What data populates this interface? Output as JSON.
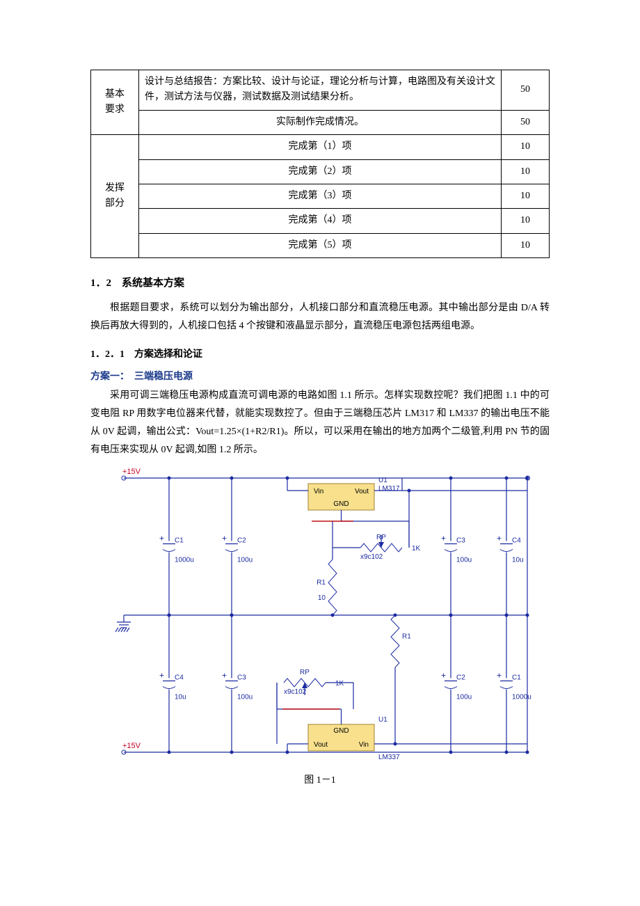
{
  "table": {
    "row1_label": "基本\n要求",
    "row1_desc": "设计与总结报告：方案比较、设计与论证，理论分析与计算，电路图及有关设计文件，测试方法与仪器，测试数据及测试结果分析。",
    "row1_pts": "50",
    "row2_desc": "实际制作完成情况。",
    "row2_pts": "50",
    "row3_label": "发挥\n部分",
    "r3a": "完成第（1）项",
    "r3a_pts": "10",
    "r3b": "完成第（2）项",
    "r3b_pts": "10",
    "r3c": "完成第（3）项",
    "r3c_pts": "10",
    "r3d": "完成第（4）项",
    "r3d_pts": "10",
    "r3e": "完成第（5）项",
    "r3e_pts": "10"
  },
  "section12": "1．2　系统基本方案",
  "para12": "根据题目要求，系统可以划分为输出部分，人机接口部分和直流稳压电源。其中输出部分是由 D/A 转换后再放大得到的，人机接口包括 4 个按键和液晶显示部分，直流稳压电源包括两组电源。",
  "section121": "1．2．1　方案选择和论证",
  "scheme1_title": "方案一：　三端稳压电源",
  "scheme1_body": "采用可调三端稳压电源构成直流可调电源的电路如图 1.1 所示。怎样实现数控呢？我们把图 1.1 中的可变电阻 RP 用数字电位器来代替，就能实现数控了。但由于三端稳压芯片 LM317 和 LM337 的输出电压不能从 0V 起调，输出公式：Vout=1.25×(1+R2/R1)。所以，可以采用在输出的地方加两个二级管,利用 PN 节的固有电压来实现从 0V 起调,如图 1.2 所示。",
  "figcap": "图 1－1",
  "circuit": {
    "type": "circuit-schematic",
    "wire_color": "#1b2aa0",
    "chip_fill": "#f8e08c",
    "chip_border": "#a08030",
    "text_color": "#1b2aa0",
    "text_color2": "#1b3a8a",
    "background": "#ffffff",
    "font_size_small": 10,
    "font_size_label": 11,
    "voltage_labels": {
      "top": "+15V",
      "bottom": "+15V"
    },
    "chips": {
      "top": {
        "ref": "U1",
        "part": "LM317",
        "pins": [
          "Vin",
          "Vout",
          "GND"
        ]
      },
      "bottom": {
        "ref": "U1",
        "part": "LM337",
        "pins": [
          "Vout",
          "Vin",
          "GND"
        ]
      }
    },
    "caps_top": [
      {
        "ref": "C1",
        "val": "1000u"
      },
      {
        "ref": "C2",
        "val": "100u"
      },
      {
        "ref": "C3",
        "val": "100u"
      },
      {
        "ref": "C4",
        "val": "10u"
      }
    ],
    "caps_bottom": [
      {
        "ref": "C4",
        "val": "10u"
      },
      {
        "ref": "C3",
        "val": "100u"
      },
      {
        "ref": "C2",
        "val": "100u"
      },
      {
        "ref": "C1",
        "val": "1000u"
      }
    ],
    "resistors": [
      {
        "ref": "R1",
        "val": "10"
      },
      {
        "ref": "R1",
        "val": ""
      }
    ],
    "pots": [
      {
        "ref": "RP",
        "part": "x9c102",
        "val": "1K"
      },
      {
        "ref": "RP",
        "part": "x9c102",
        "val": "1K"
      }
    ]
  }
}
